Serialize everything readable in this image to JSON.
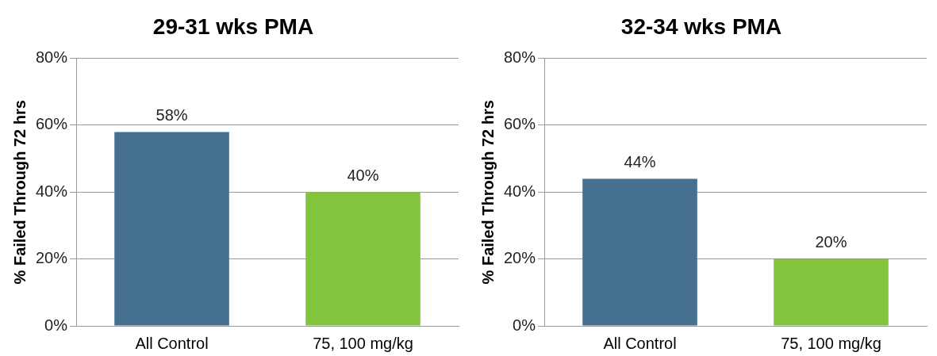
{
  "chart_data": [
    {
      "type": "bar",
      "title": "29-31 wks PMA",
      "ylabel": "% Failed Through 72 hrs",
      "categories": [
        "All Control",
        "75, 100 mg/kg"
      ],
      "values": [
        58,
        40
      ],
      "colors": [
        "#46708f",
        "#82c43b"
      ],
      "value_labels": [
        "58%",
        "40%"
      ],
      "ylim": [
        0,
        80
      ],
      "yticks": [
        {
          "value": 0,
          "label": "0%"
        },
        {
          "value": 20,
          "label": "20%"
        },
        {
          "value": 40,
          "label": "40%"
        },
        {
          "value": 60,
          "label": "60%"
        },
        {
          "value": 80,
          "label": "80%"
        }
      ],
      "grid": "y",
      "legend": false
    },
    {
      "type": "bar",
      "title": "32-34 wks PMA",
      "ylabel": "% Failed Through 72 hrs",
      "categories": [
        "All Control",
        "75, 100 mg/kg"
      ],
      "values": [
        44,
        20
      ],
      "colors": [
        "#46708f",
        "#82c43b"
      ],
      "value_labels": [
        "44%",
        "20%"
      ],
      "ylim": [
        0,
        80
      ],
      "yticks": [
        {
          "value": 0,
          "label": "0%"
        },
        {
          "value": 20,
          "label": "20%"
        },
        {
          "value": 40,
          "label": "40%"
        },
        {
          "value": 60,
          "label": "60%"
        },
        {
          "value": 80,
          "label": "80%"
        }
      ],
      "grid": "y",
      "legend": false
    }
  ]
}
